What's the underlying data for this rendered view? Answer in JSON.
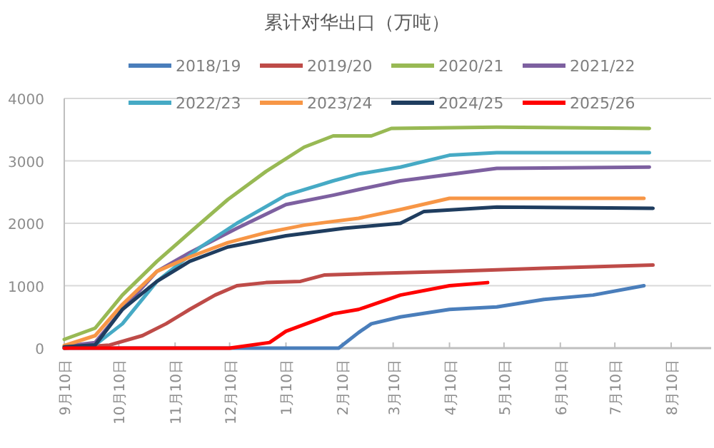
{
  "chart_data": {
    "type": "line",
    "title": "累计对华出口（万吨）",
    "legend": "top",
    "grid": "y",
    "marker": "none",
    "line_style": "solid",
    "xlim": [
      "2024-09-10",
      "2025-09-01"
    ],
    "ylim": [
      0,
      4000
    ],
    "yticks": [
      0,
      1000,
      2000,
      3000,
      4000
    ],
    "xticks": [
      {
        "value": "2024-09-10",
        "label": "9月10日"
      },
      {
        "value": "2024-10-10",
        "label": "10月10日"
      },
      {
        "value": "2024-11-10",
        "label": "11月10日"
      },
      {
        "value": "2024-12-10",
        "label": "12月10日"
      },
      {
        "value": "2025-01-10",
        "label": "1月10日"
      },
      {
        "value": "2025-02-10",
        "label": "2月10日"
      },
      {
        "value": "2025-03-10",
        "label": "3月10日"
      },
      {
        "value": "2025-04-10",
        "label": "4月10日"
      },
      {
        "value": "2025-05-10",
        "label": "5月10日"
      },
      {
        "value": "2025-06-10",
        "label": "6月10日"
      },
      {
        "value": "2025-07-10",
        "label": "7月10日"
      },
      {
        "value": "2025-08-10",
        "label": "8月10日"
      }
    ],
    "series": [
      {
        "name": "2018/19",
        "color": "#4a7ebb",
        "x": [
          "2024-09-10",
          "2025-02-08",
          "2025-02-19",
          "2025-02-26",
          "2025-03-14",
          "2025-04-10",
          "2025-05-06",
          "2025-06-01",
          "2025-06-28",
          "2025-07-26"
        ],
        "values": [
          0,
          0,
          250,
          390,
          500,
          620,
          660,
          780,
          850,
          1000
        ]
      },
      {
        "name": "2019/20",
        "color": "#be4b48",
        "x": [
          "2024-09-10",
          "2024-10-05",
          "2024-10-23",
          "2024-11-05",
          "2024-11-18",
          "2024-12-02",
          "2024-12-14",
          "2024-12-30",
          "2025-01-18",
          "2025-01-31",
          "2025-02-19",
          "2025-04-10",
          "2025-06-01",
          "2025-07-31"
        ],
        "values": [
          0,
          50,
          200,
          390,
          620,
          850,
          1000,
          1050,
          1070,
          1170,
          1190,
          1230,
          1280,
          1330
        ]
      },
      {
        "name": "2020/21",
        "color": "#98b954",
        "x": [
          "2024-09-10",
          "2024-09-27",
          "2024-10-12",
          "2024-10-31",
          "2024-11-18",
          "2024-12-09",
          "2024-12-30",
          "2025-01-20",
          "2025-02-05",
          "2025-02-26",
          "2025-03-09",
          "2025-05-06",
          "2025-07-29"
        ],
        "values": [
          140,
          320,
          850,
          1390,
          1850,
          2380,
          2830,
          3220,
          3400,
          3400,
          3520,
          3540,
          3520
        ]
      },
      {
        "name": "2021/22",
        "color": "#7d60a0",
        "x": [
          "2024-09-10",
          "2024-09-27",
          "2024-10-12",
          "2024-10-31",
          "2024-11-18",
          "2024-12-14",
          "2025-01-10",
          "2025-02-05",
          "2025-02-19",
          "2025-03-14",
          "2025-05-06",
          "2025-07-29"
        ],
        "values": [
          30,
          90,
          620,
          1230,
          1530,
          1920,
          2300,
          2450,
          2540,
          2680,
          2880,
          2900
        ]
      },
      {
        "name": "2022/23",
        "color": "#46aac5",
        "x": [
          "2024-09-10",
          "2024-09-27",
          "2024-10-12",
          "2024-10-31",
          "2024-11-24",
          "2024-12-14",
          "2025-01-10",
          "2025-02-05",
          "2025-02-19",
          "2025-03-14",
          "2025-04-10",
          "2025-05-06",
          "2025-07-29"
        ],
        "values": [
          0,
          50,
          390,
          1070,
          1620,
          2000,
          2450,
          2680,
          2790,
          2900,
          3090,
          3130,
          3130
        ]
      },
      {
        "name": "2023/24",
        "color": "#f79646",
        "x": [
          "2024-09-10",
          "2024-09-27",
          "2024-10-12",
          "2024-10-31",
          "2024-11-18",
          "2024-12-09",
          "2024-12-30",
          "2025-01-20",
          "2025-02-05",
          "2025-02-19",
          "2025-03-14",
          "2025-04-10",
          "2025-07-26"
        ],
        "values": [
          40,
          200,
          700,
          1230,
          1460,
          1690,
          1850,
          1970,
          2030,
          2080,
          2220,
          2400,
          2400
        ]
      },
      {
        "name": "2024/25",
        "color": "#1f3d5f",
        "x": [
          "2024-09-10",
          "2024-09-27",
          "2024-10-12",
          "2024-10-31",
          "2024-11-18",
          "2024-12-09",
          "2025-01-10",
          "2025-02-11",
          "2025-03-14",
          "2025-03-27",
          "2025-05-06",
          "2025-07-31"
        ],
        "values": [
          20,
          50,
          620,
          1070,
          1390,
          1620,
          1800,
          1920,
          2000,
          2190,
          2260,
          2240
        ]
      },
      {
        "name": "2025/26",
        "color": "#ff0000",
        "x": [
          "2024-09-10",
          "2024-12-10",
          "2025-01-01",
          "2025-01-10",
          "2025-02-05",
          "2025-02-19",
          "2025-03-14",
          "2025-04-10",
          "2025-05-01"
        ],
        "values": [
          0,
          0,
          90,
          270,
          550,
          620,
          850,
          1000,
          1050
        ]
      }
    ]
  }
}
